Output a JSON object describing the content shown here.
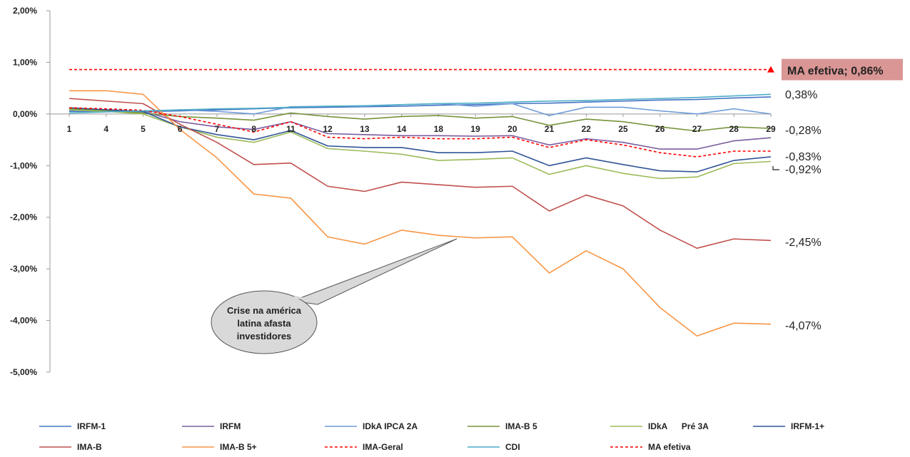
{
  "chart_data": {
    "type": "line",
    "title": "",
    "xlabel": "",
    "ylabel": "",
    "ylim": [
      -5,
      2
    ],
    "yticks": [
      "2,00%",
      "1,00%",
      "0,00%",
      "-1,00%",
      "-2,00%",
      "-3,00%",
      "-4,00%",
      "-5,00%"
    ],
    "ytick_values": [
      2,
      1,
      0,
      -1,
      -2,
      -3,
      -4,
      -5
    ],
    "categories": [
      "1",
      "4",
      "5",
      "6",
      "7",
      "8",
      "11",
      "12",
      "13",
      "14",
      "18",
      "19",
      "20",
      "21",
      "22",
      "25",
      "26",
      "27",
      "28",
      "29"
    ],
    "grid": false,
    "legend_position": "bottom",
    "series": [
      {
        "name": "IRFM-1",
        "color": "#4472C4",
        "dash": false,
        "values": [
          0.05,
          0.05,
          0.04,
          0.06,
          0.08,
          0.1,
          0.12,
          0.13,
          0.14,
          0.15,
          0.17,
          0.18,
          0.2,
          0.21,
          0.23,
          0.25,
          0.27,
          0.28,
          0.31,
          0.33
        ]
      },
      {
        "name": "IRFM",
        "color": "#7A5C9E",
        "dash": false,
        "values": [
          0.1,
          0.08,
          0.05,
          -0.15,
          -0.25,
          -0.3,
          -0.15,
          -0.38,
          -0.4,
          -0.42,
          -0.42,
          -0.43,
          -0.42,
          -0.6,
          -0.48,
          -0.55,
          -0.68,
          -0.68,
          -0.52,
          -0.46
        ]
      },
      {
        "name": "IDkA IPCA 2A",
        "color": "#6C9BD9",
        "dash": false,
        "values": [
          0.07,
          0.05,
          0.03,
          0.08,
          0.05,
          0.0,
          0.14,
          0.15,
          0.15,
          0.18,
          0.2,
          0.15,
          0.2,
          -0.03,
          0.13,
          0.13,
          0.06,
          0.0,
          0.1,
          0.0
        ]
      },
      {
        "name": "IMA-B 5",
        "color": "#77933C",
        "dash": false,
        "values": [
          0.1,
          0.06,
          0.02,
          -0.05,
          -0.08,
          -0.12,
          0.02,
          -0.05,
          -0.1,
          -0.05,
          -0.03,
          -0.08,
          -0.05,
          -0.22,
          -0.1,
          -0.15,
          -0.25,
          -0.33,
          -0.25,
          -0.28
        ]
      },
      {
        "name": "IDkA      Pré 3A",
        "color": "#9BBB59",
        "dash": false,
        "values": [
          0.08,
          0.05,
          0.0,
          -0.25,
          -0.45,
          -0.55,
          -0.35,
          -0.67,
          -0.72,
          -0.78,
          -0.9,
          -0.88,
          -0.85,
          -1.17,
          -1.0,
          -1.15,
          -1.25,
          -1.22,
          -0.96,
          -0.92
        ]
      },
      {
        "name": "IRFM-1+",
        "color": "#2F5597",
        "dash": false,
        "values": [
          0.12,
          0.08,
          0.05,
          -0.25,
          -0.4,
          -0.5,
          -0.32,
          -0.62,
          -0.65,
          -0.65,
          -0.75,
          -0.75,
          -0.72,
          -1.0,
          -0.85,
          -0.98,
          -1.1,
          -1.12,
          -0.9,
          -0.83
        ]
      },
      {
        "name": "IMA-B",
        "color": "#C0504D",
        "dash": false,
        "values": [
          0.3,
          0.25,
          0.2,
          -0.2,
          -0.55,
          -0.98,
          -0.95,
          -1.4,
          -1.5,
          -1.32,
          -1.37,
          -1.42,
          -1.4,
          -1.88,
          -1.57,
          -1.78,
          -2.25,
          -2.6,
          -2.42,
          -2.45
        ]
      },
      {
        "name": "IMA-B 5+",
        "color": "#F79646",
        "dash": false,
        "values": [
          0.45,
          0.45,
          0.38,
          -0.3,
          -0.85,
          -1.55,
          -1.63,
          -2.38,
          -2.52,
          -2.25,
          -2.35,
          -2.4,
          -2.38,
          -3.08,
          -2.65,
          -3.0,
          -3.75,
          -4.3,
          -4.05,
          -4.07
        ]
      },
      {
        "name": "IMA-Geral",
        "color": "#FF0000",
        "dash": true,
        "values": [
          0.12,
          0.1,
          0.07,
          -0.05,
          -0.2,
          -0.35,
          -0.15,
          -0.45,
          -0.48,
          -0.45,
          -0.48,
          -0.48,
          -0.45,
          -0.65,
          -0.5,
          -0.6,
          -0.75,
          -0.83,
          -0.72,
          -0.72
        ]
      },
      {
        "name": "CDI",
        "color": "#4BACC6",
        "dash": false,
        "values": [
          0.02,
          0.04,
          0.06,
          0.08,
          0.1,
          0.11,
          0.13,
          0.15,
          0.16,
          0.18,
          0.2,
          0.21,
          0.23,
          0.25,
          0.26,
          0.28,
          0.3,
          0.32,
          0.35,
          0.38
        ]
      },
      {
        "name": "MA efetiva",
        "color": "#FF0000",
        "dash": true,
        "values": [
          0.86,
          0.86,
          0.86,
          0.86,
          0.86,
          0.86,
          0.86,
          0.86,
          0.86,
          0.86,
          0.86,
          0.86,
          0.86,
          0.86,
          0.86,
          0.86,
          0.86,
          0.86,
          0.86,
          0.86
        ]
      }
    ],
    "end_labels": [
      {
        "text": "0,38%",
        "value": 0.38,
        "color": "#222222"
      },
      {
        "text": "-0,28%",
        "value": -0.28,
        "color": "#222222"
      },
      {
        "text": "-0,83%",
        "value": -0.83,
        "color": "#222222"
      },
      {
        "text": "-0,92%",
        "value": -0.92,
        "color": "#FF0000"
      },
      {
        "text": "-2,45%",
        "value": -2.45,
        "color": "#222222"
      },
      {
        "text": "-4,07%",
        "value": -4.07,
        "color": "#222222"
      }
    ],
    "highlight_label": {
      "text": "MA efetiva; 0,86%",
      "value": 0.86,
      "background": "#D99694"
    },
    "callout": {
      "lines": [
        "Crise na américa",
        "latina afasta",
        "investidores"
      ]
    }
  }
}
